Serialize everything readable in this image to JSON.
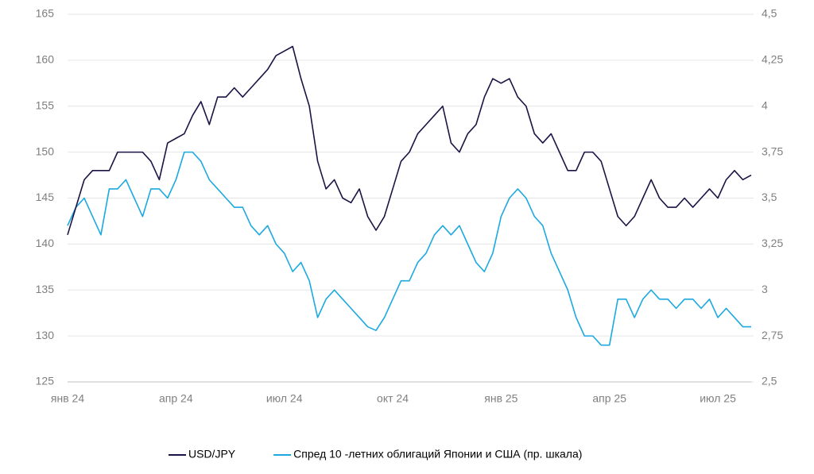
{
  "chart_data": {
    "type": "line",
    "categories": [
      "янв 24",
      null,
      null,
      null,
      null,
      null,
      null,
      null,
      null,
      null,
      null,
      null,
      null,
      "апр 24",
      null,
      null,
      null,
      null,
      null,
      null,
      null,
      null,
      null,
      null,
      null,
      null,
      "июл 24",
      null,
      null,
      null,
      null,
      null,
      null,
      null,
      null,
      null,
      null,
      null,
      null,
      "окт 24",
      null,
      null,
      null,
      null,
      null,
      null,
      null,
      null,
      null,
      null,
      null,
      null,
      "янв 25",
      null,
      null,
      null,
      null,
      null,
      null,
      null,
      null,
      null,
      null,
      null,
      null,
      "апр 25",
      null,
      null,
      null,
      null,
      null,
      null,
      null,
      null,
      null,
      null,
      null,
      null,
      "июл 25",
      null,
      null,
      null,
      null
    ],
    "series": [
      {
        "name": "USD/JPY",
        "color": "#1a1446",
        "values": [
          141,
          144,
          147,
          148,
          148,
          148,
          150,
          150,
          150,
          150,
          149,
          147,
          151,
          151.5,
          152,
          154,
          155.5,
          153,
          156,
          156,
          157,
          156,
          157,
          158,
          159,
          160.5,
          161,
          161.5,
          158,
          155,
          149,
          146,
          147,
          145,
          144.5,
          146,
          143,
          141.5,
          143,
          146,
          149,
          150,
          152,
          153,
          154,
          155,
          151,
          150,
          152,
          153,
          156,
          158,
          157.5,
          158,
          156,
          155,
          152,
          151,
          152,
          150,
          148,
          148,
          150,
          150,
          149,
          146,
          143,
          142,
          143,
          145,
          147,
          145,
          144,
          144,
          145,
          144,
          145,
          146,
          145,
          147,
          148,
          147,
          147.5
        ]
      },
      {
        "name": "Спред 10 -летних облигаций Японии и США (пр. шкала)",
        "color": "#1ba9e0",
        "axis": "y2",
        "values": [
          3.35,
          3.45,
          3.5,
          3.4,
          3.3,
          3.55,
          3.55,
          3.6,
          3.5,
          3.4,
          3.55,
          3.55,
          3.5,
          3.6,
          3.75,
          3.75,
          3.7,
          3.6,
          3.55,
          3.5,
          3.45,
          3.45,
          3.35,
          3.3,
          3.35,
          3.25,
          3.2,
          3.1,
          3.15,
          3.05,
          2.85,
          2.95,
          3.0,
          2.95,
          2.9,
          2.85,
          2.8,
          2.78,
          2.85,
          2.95,
          3.05,
          3.05,
          3.15,
          3.2,
          3.3,
          3.35,
          3.3,
          3.35,
          3.25,
          3.15,
          3.1,
          3.2,
          3.4,
          3.5,
          3.55,
          3.5,
          3.4,
          3.35,
          3.2,
          3.1,
          3.0,
          2.85,
          2.75,
          2.75,
          2.7,
          2.7,
          2.95,
          2.95,
          2.85,
          2.95,
          3.0,
          2.95,
          2.95,
          2.9,
          2.95,
          2.95,
          2.9,
          2.95,
          2.85,
          2.9,
          2.85,
          2.8,
          2.8
        ]
      }
    ],
    "ylim": [
      125,
      165
    ],
    "yticks": [
      125,
      130,
      135,
      140,
      145,
      150,
      155,
      160,
      165
    ],
    "y2lim": [
      2.5,
      4.5
    ],
    "y2ticks": [
      {
        "value": 2.5,
        "label": "2,5"
      },
      {
        "value": 2.75,
        "label": "2,75"
      },
      3,
      {
        "value": 3.25,
        "label": "3,25"
      },
      {
        "value": 3.5,
        "label": "3,5"
      },
      {
        "value": 3.75,
        "label": "3,75"
      },
      4,
      {
        "value": 4.25,
        "label": "4,25"
      },
      {
        "value": 4.5,
        "label": "4,5"
      }
    ],
    "grid": true,
    "legend": "bottom"
  }
}
